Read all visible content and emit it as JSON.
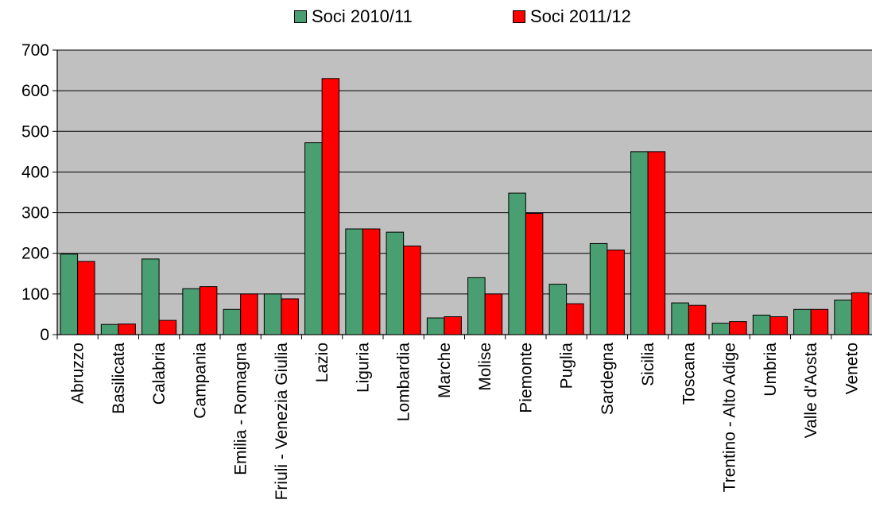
{
  "chart_data": {
    "type": "bar",
    "title": "",
    "xlabel": "",
    "ylabel": "",
    "ylim": [
      0,
      700
    ],
    "yticks": [
      0,
      100,
      200,
      300,
      400,
      500,
      600,
      700
    ],
    "grid": true,
    "legend_position": "top-center",
    "colors": {
      "series1": "#4a9f72",
      "series2": "#ff0000",
      "plot_bg": "#c0c0c0"
    },
    "categories": [
      "Abruzzo",
      "Basilicata",
      "Calabria",
      "Campania",
      "Emilia - Romagna",
      "Friuli - Venezia Giulia",
      "Lazio",
      "Liguria",
      "Lombardia",
      "Marche",
      "Molise",
      "Piemonte",
      "Puglia",
      "Sardegna",
      "Sicilia",
      "Toscana",
      "Trentino - Alto Adige",
      "Umbria",
      "Valle d'Aosta",
      "Veneto"
    ],
    "series": [
      {
        "name": "Soci 2010/11",
        "values": [
          198,
          25,
          186,
          113,
          62,
          100,
          472,
          260,
          252,
          41,
          140,
          348,
          124,
          224,
          450,
          78,
          28,
          48,
          62,
          85
        ]
      },
      {
        "name": "Soci 2011/12",
        "values": [
          180,
          26,
          35,
          118,
          100,
          88,
          630,
          260,
          218,
          44,
          100,
          298,
          76,
          208,
          450,
          72,
          32,
          44,
          62,
          103
        ]
      }
    ]
  }
}
